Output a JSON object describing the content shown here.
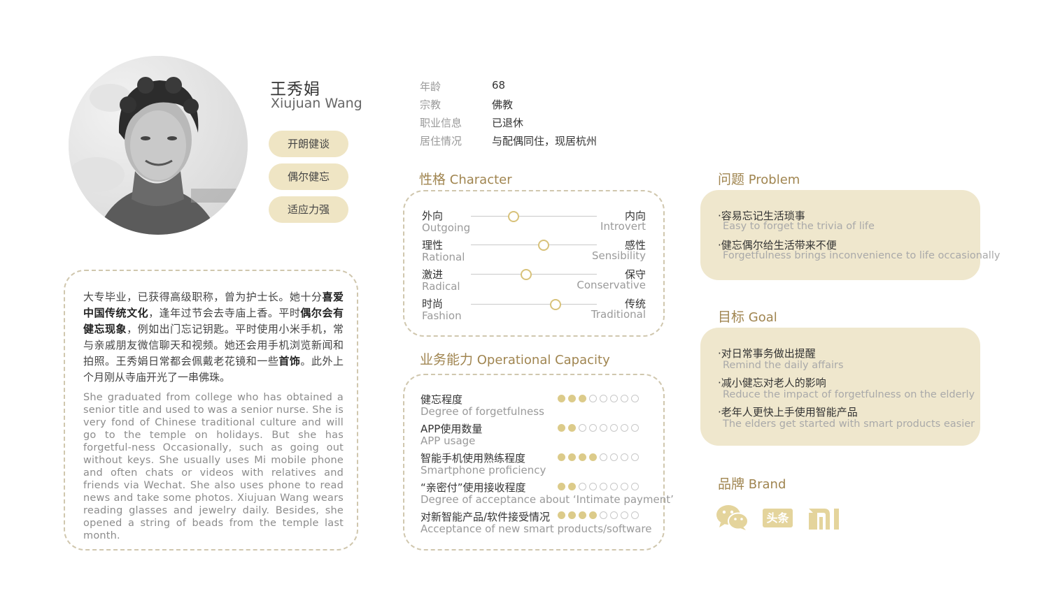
{
  "profile": {
    "name_cn": "王秀娟",
    "name_en": "Xiujuan Wang",
    "tags": [
      "开朗健谈",
      "偶尔健忘",
      "适应力强"
    ]
  },
  "info": [
    {
      "label": "年龄",
      "value": "68"
    },
    {
      "label": "宗教",
      "value": "佛教"
    },
    {
      "label": "职业信息",
      "value": "已退休"
    },
    {
      "label": "居住情况",
      "value": "与配偶同住，现居杭州"
    }
  ],
  "bio": {
    "cn_parts": [
      {
        "text": "大专毕业，已获得高级职称，曾为护士长。她十分",
        "bold": false
      },
      {
        "text": "喜爱中国传统文化",
        "bold": true
      },
      {
        "text": "，逢年过节会去寺庙上香。平时",
        "bold": false
      },
      {
        "text": "偶尔会有健忘现象",
        "bold": true
      },
      {
        "text": "，例如出门忘记钥匙。平时使用小米手机，常与亲戚朋友微信聊天和视频。她还会用手机浏览新闻和拍照。王秀娟日常都会佩戴老花镜和一些",
        "bold": false
      },
      {
        "text": "首饰",
        "bold": true
      },
      {
        "text": "。此外上个月刚从寺庙开光了一串佛珠。",
        "bold": false
      }
    ],
    "en": "She graduated from college who has obtained a senior title and used to was a senior nurse. She is very fond of Chinese traditional culture and will go to the temple on holidays. But she has forgetful-ness Occasionally, such as going out without keys. She usually uses Mi mobile phone and often chats or videos with relatives and friends via Wechat. She also uses phone to read news and take some photos. Xiujuan Wang wears reading glasses and jewelry daily. Besides, she opened a string of beads from the temple last month."
  },
  "character": {
    "title_cn": "性格",
    "title_en": "Character",
    "traits": [
      {
        "left_cn": "外向",
        "left_en": "Outgoing",
        "right_cn": "内向",
        "right_en": "Introvert",
        "level": 0.34
      },
      {
        "left_cn": "理性",
        "left_en": "Rational",
        "right_cn": "感性",
        "right_en": "Sensibility",
        "level": 0.58
      },
      {
        "left_cn": "激进",
        "left_en": "Radical",
        "right_cn": "保守",
        "right_en": "Conservative",
        "level": 0.44
      },
      {
        "left_cn": "时尚",
        "left_en": "Fashion",
        "right_cn": "传统",
        "right_en": "Traditional",
        "level": 0.67
      }
    ]
  },
  "capacity": {
    "title_cn": "业务能力",
    "title_en": "Operational Capacity",
    "max": 8,
    "items": [
      {
        "cn": "健忘程度",
        "en": "Degree of forgetfulness",
        "score": 3
      },
      {
        "cn": "APP使用数量",
        "en": "APP usage",
        "score": 2
      },
      {
        "cn": "智能手机使用熟练程度",
        "en": "Smartphone proficiency",
        "score": 4
      },
      {
        "cn": "“亲密付”使用接收程度",
        "en": "Degree of acceptance about ‘Intimate payment’",
        "score": 2
      },
      {
        "cn": "对新智能产品/软件接受情况",
        "en": "Acceptance of new smart products/software",
        "score": 4
      }
    ]
  },
  "problem": {
    "title_cn": "问题",
    "title_en": "Problem",
    "items": [
      {
        "cn": "·容易忘记生活琐事",
        "en": "Easy to forget the trivia of life"
      },
      {
        "cn": "·健忘偶尔给生活带来不便",
        "en": "Forgetfulness brings inconvenience to life occasionally"
      }
    ]
  },
  "goal": {
    "title_cn": "目标",
    "title_en": "Goal",
    "items": [
      {
        "cn": "·对日常事务做出提醒",
        "en": "Remind the daily affairs"
      },
      {
        "cn": "·减小健忘对老人的影响",
        "en": "Reduce the impact of forgetfulness on the elderly"
      },
      {
        "cn": "·老年人更快上手使用智能产品",
        "en": "The elders get started with smart products easier"
      }
    ]
  },
  "brand": {
    "title_cn": "品牌",
    "title_en": "Brand",
    "icons": [
      "wechat-icon",
      "toutiao-icon",
      "xiaomi-icon"
    ],
    "toutiao_text": "头条",
    "xiaomi_text": "mi"
  },
  "colors": {
    "accent": "#a08550",
    "tag_bg": "#efe5c4",
    "panel_bg": "#efe7cd",
    "dot_on": "#dccb8a",
    "brand_icon": "#e4d49c"
  }
}
